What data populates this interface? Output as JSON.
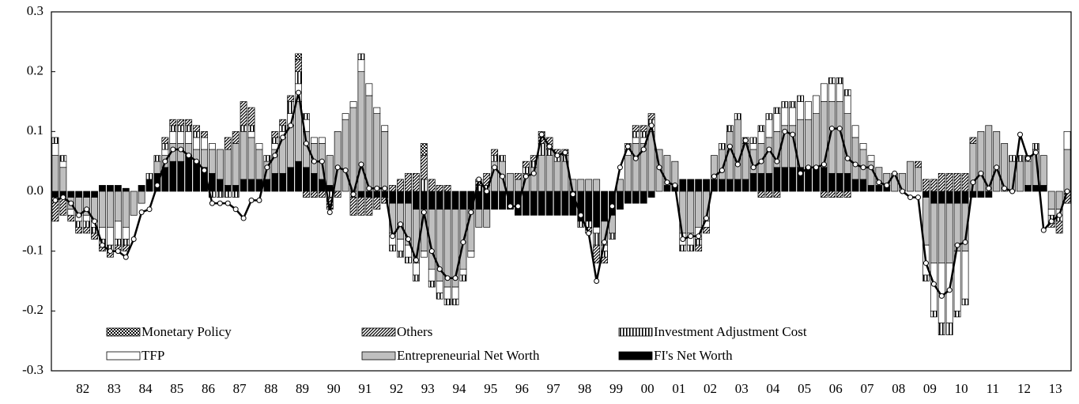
{
  "chart_data": {
    "type": "bar",
    "stacked": true,
    "categories": [
      null,
      null,
      null,
      "82",
      null,
      null,
      null,
      "83",
      null,
      null,
      null,
      "84",
      null,
      null,
      null,
      "85",
      null,
      null,
      null,
      "86",
      null,
      null,
      null,
      "87",
      null,
      null,
      null,
      "88",
      null,
      null,
      null,
      "89",
      null,
      null,
      null,
      "90",
      null,
      null,
      null,
      "91",
      null,
      null,
      null,
      "92",
      null,
      null,
      null,
      "93",
      null,
      null,
      null,
      "94",
      null,
      null,
      null,
      "95",
      null,
      null,
      null,
      "96",
      null,
      null,
      null,
      "97",
      null,
      null,
      null,
      "98",
      null,
      null,
      null,
      "99",
      null,
      null,
      null,
      "00",
      null,
      null,
      null,
      "01",
      null,
      null,
      null,
      "02",
      null,
      null,
      null,
      "03",
      null,
      null,
      null,
      "04",
      null,
      null,
      null,
      "05",
      null,
      null,
      null,
      "06",
      null,
      null,
      null,
      "07",
      null,
      null,
      null,
      "08",
      null,
      null,
      null,
      "09",
      null,
      null,
      null,
      "10",
      null,
      null,
      null,
      "11",
      null,
      null,
      null,
      "12",
      null,
      null,
      null,
      "13",
      null,
      null
    ],
    "series": [
      {
        "name": "Monetary Policy",
        "color": "#000000",
        "pattern": "checker",
        "values": [
          0,
          0,
          0,
          0,
          0,
          0,
          0,
          0,
          0,
          0,
          0,
          0,
          0,
          0,
          0,
          0,
          0,
          0,
          0,
          0,
          0,
          0,
          0,
          0,
          0,
          0,
          0,
          0,
          0,
          0,
          0,
          0.01,
          0,
          0,
          0,
          0,
          0,
          0,
          0,
          0,
          0,
          0,
          0,
          0,
          0,
          0,
          0,
          0.02,
          0,
          0,
          0,
          0,
          0,
          0,
          0,
          0,
          0,
          0,
          0,
          0,
          0,
          0,
          0,
          0,
          0,
          0,
          0,
          0,
          0,
          0,
          0,
          0,
          0,
          0,
          0,
          0,
          0,
          0,
          0,
          0,
          0,
          0,
          0,
          0,
          0,
          0,
          0,
          0,
          0,
          0,
          0,
          0,
          0,
          0,
          0,
          0,
          0,
          0,
          0,
          0,
          0,
          0,
          0,
          0,
          0,
          0,
          0,
          0,
          0,
          0,
          0,
          0,
          0,
          0,
          0,
          0,
          0,
          0,
          0,
          0,
          0,
          0,
          0,
          0,
          0,
          0,
          0,
          0,
          0,
          0
        ]
      },
      {
        "name": "Others",
        "color": "#000000",
        "pattern": "hatch",
        "values": [
          -0.04,
          -0.03,
          -0.01,
          -0.01,
          -0.01,
          -0.01,
          -0.01,
          -0.01,
          -0.01,
          -0.01,
          0,
          0,
          0,
          0,
          0.01,
          0.01,
          0.01,
          0.01,
          0.01,
          0.01,
          0,
          0,
          0.02,
          0.02,
          0.04,
          0.03,
          0,
          0,
          0.01,
          0.01,
          0.01,
          0.02,
          -0.01,
          -0.01,
          -0.01,
          -0.02,
          -0.01,
          0,
          -0.03,
          -0.03,
          -0.03,
          -0.02,
          -0.01,
          0.01,
          0.02,
          0.03,
          0.03,
          0.04,
          0.02,
          0.01,
          0.01,
          0,
          0,
          0,
          0.01,
          0.02,
          0.01,
          0,
          0,
          0.01,
          0.01,
          0.01,
          0.02,
          0.02,
          0.01,
          0.01,
          0,
          0,
          -0.01,
          -0.03,
          -0.01,
          0,
          0,
          0,
          0.01,
          0.01,
          0.01,
          0,
          0,
          0,
          0,
          0,
          -0.01,
          -0.01,
          0,
          0,
          0,
          0,
          0,
          0,
          -0.01,
          -0.01,
          -0.01,
          0,
          0,
          0,
          0,
          0,
          -0.01,
          -0.01,
          -0.01,
          -0.01,
          0,
          0,
          0,
          0,
          0,
          0,
          0,
          0,
          0.01,
          0.02,
          0.02,
          0.03,
          0.03,
          0.03,
          0.03,
          0.01,
          0,
          0,
          0,
          0,
          0,
          0,
          0,
          0,
          0,
          -0.01,
          -0.02,
          -0.02
        ]
      },
      {
        "name": "Investment Adjustment Cost",
        "color": "#000000",
        "pattern": "stripes",
        "values": [
          0.01,
          0.01,
          0,
          -0.01,
          -0.01,
          -0.01,
          -0.01,
          -0.01,
          -0.01,
          -0.01,
          0,
          0,
          0.01,
          0.01,
          0.01,
          0.01,
          0.01,
          0.01,
          0.01,
          0,
          -0.01,
          -0.01,
          -0.01,
          -0.01,
          0.01,
          0.01,
          0,
          0.01,
          0.01,
          0.01,
          0.02,
          0.02,
          0.01,
          0,
          0,
          -0.01,
          0,
          0,
          -0.01,
          0.01,
          0,
          0,
          0,
          -0.01,
          -0.01,
          -0.01,
          -0.01,
          0.02,
          -0.01,
          -0.01,
          -0.01,
          -0.01,
          -0.01,
          0,
          0.01,
          0.01,
          0.01,
          0.01,
          0,
          0,
          0.01,
          0.01,
          0.02,
          0.01,
          0.01,
          0.01,
          0,
          -0.01,
          -0.01,
          -0.02,
          -0.01,
          -0.01,
          0,
          0.01,
          0.01,
          0.01,
          0.01,
          0,
          0,
          0,
          -0.01,
          -0.01,
          -0.01,
          0,
          0,
          0.01,
          0.01,
          0.01,
          0.01,
          0.01,
          0.01,
          0.01,
          0.01,
          0.01,
          0.01,
          0.01,
          0,
          0,
          0,
          0.01,
          0.01,
          0.01,
          0,
          0,
          0,
          0,
          0,
          0,
          0,
          0,
          0,
          -0.01,
          -0.01,
          -0.02,
          -0.02,
          -0.01,
          -0.01,
          0,
          0,
          0,
          0,
          0,
          0.01,
          0.01,
          0.01,
          0.01,
          0,
          -0.01,
          -0.01,
          0
        ]
      },
      {
        "name": "TFP",
        "color": "#ffffff",
        "pattern": "solid",
        "values": [
          0.02,
          0.01,
          -0.01,
          -0.01,
          -0.01,
          -0.01,
          -0.02,
          -0.03,
          -0.03,
          -0.02,
          0,
          0,
          0,
          0,
          0.01,
          0.02,
          0.02,
          0.02,
          0.02,
          0.02,
          0.01,
          0,
          0,
          0,
          0,
          0.01,
          0.01,
          0,
          0.01,
          0.01,
          0.02,
          0.03,
          0.02,
          0.01,
          0.01,
          0,
          0,
          0.01,
          0.01,
          0.02,
          0.02,
          0.01,
          0.01,
          -0.02,
          -0.02,
          -0.02,
          -0.02,
          -0.01,
          -0.02,
          -0.02,
          -0.02,
          -0.02,
          -0.01,
          -0.01,
          0,
          0,
          0,
          0,
          0,
          0,
          0,
          0,
          0,
          0,
          0,
          0,
          0,
          0,
          0,
          -0.01,
          -0.01,
          0,
          0,
          0.01,
          0.01,
          0.01,
          0.01,
          0,
          0,
          0,
          -0.02,
          -0.02,
          -0.02,
          -0.01,
          0,
          0,
          0,
          0,
          0,
          0.01,
          0.02,
          0.03,
          0.03,
          0.03,
          0.03,
          0.03,
          0.03,
          0.03,
          0.03,
          0.03,
          0.03,
          0.03,
          0.02,
          0.01,
          0.01,
          0,
          0,
          0,
          0,
          0,
          0,
          -0.05,
          -0.08,
          -0.1,
          -0.1,
          -0.1,
          -0.08,
          0,
          0,
          0,
          0,
          0,
          0,
          0,
          0,
          0,
          0,
          -0.01,
          -0.01,
          0.03
        ]
      },
      {
        "name": "Entrepreneurial Net Worth",
        "color": "#bfbfbf",
        "pattern": "solid",
        "values": [
          0.06,
          0.04,
          -0.02,
          -0.03,
          -0.03,
          -0.04,
          -0.06,
          -0.06,
          -0.05,
          -0.06,
          -0.04,
          -0.02,
          0,
          0.02,
          0.02,
          0.03,
          0.03,
          0.02,
          0.02,
          0.03,
          0.04,
          0.05,
          0.06,
          0.07,
          0.08,
          0.07,
          0.05,
          0.03,
          0.04,
          0.06,
          0.07,
          0.1,
          0.06,
          0.05,
          0.06,
          0.05,
          0.1,
          0.12,
          0.14,
          0.2,
          0.16,
          0.13,
          0.1,
          -0.05,
          -0.06,
          -0.07,
          -0.09,
          -0.07,
          -0.1,
          -0.12,
          -0.13,
          -0.13,
          -0.1,
          -0.07,
          -0.03,
          -0.03,
          0.05,
          0.05,
          0.03,
          0.02,
          0.03,
          0.04,
          0.06,
          0.06,
          0.05,
          0.05,
          0.02,
          0.02,
          0.02,
          0.02,
          -0.04,
          -0.03,
          0.02,
          0.06,
          0.08,
          0.08,
          0.1,
          0.07,
          0.05,
          0.04,
          -0.07,
          -0.07,
          -0.06,
          -0.05,
          0.04,
          0.05,
          0.08,
          0.1,
          0.06,
          0.04,
          0.05,
          0.06,
          0.06,
          0.07,
          0.07,
          0.08,
          0.08,
          0.09,
          0.11,
          0.12,
          0.12,
          0.1,
          0.07,
          0.05,
          0.04,
          0.03,
          0.02,
          0.03,
          0.03,
          0.05,
          0.04,
          -0.08,
          -0.1,
          -0.1,
          -0.1,
          -0.08,
          -0.08,
          0.08,
          0.1,
          0.11,
          0.1,
          0.08,
          0.05,
          0.05,
          0.04,
          0.06,
          0.05,
          -0.03,
          -0.03,
          0.07
        ]
      },
      {
        "name": "FI's Net Worth",
        "color": "#000000",
        "pattern": "solid",
        "values": [
          -0.01,
          -0.01,
          -0.01,
          -0.01,
          -0.01,
          -0.01,
          0.01,
          0.01,
          0.01,
          0.005,
          0,
          0.01,
          0.02,
          0.03,
          0.04,
          0.05,
          0.05,
          0.06,
          0.05,
          0.04,
          0.03,
          0.02,
          0.01,
          0.01,
          0.02,
          0.02,
          0.02,
          0.02,
          0.03,
          0.03,
          0.04,
          0.05,
          0.04,
          0.03,
          0.02,
          0.01,
          0,
          0,
          0,
          -0.01,
          -0.01,
          -0.01,
          -0.01,
          -0.02,
          -0.02,
          -0.02,
          -0.03,
          -0.03,
          -0.03,
          -0.03,
          -0.03,
          -0.03,
          -0.03,
          -0.03,
          -0.03,
          -0.03,
          -0.03,
          -0.03,
          -0.03,
          -0.04,
          -0.04,
          -0.04,
          -0.04,
          -0.04,
          -0.04,
          -0.04,
          -0.04,
          -0.05,
          -0.05,
          -0.06,
          -0.05,
          -0.04,
          -0.03,
          -0.02,
          -0.02,
          -0.02,
          -0.01,
          0,
          0.01,
          0.01,
          0.02,
          0.02,
          0.02,
          0.02,
          0.02,
          0.02,
          0.02,
          0.02,
          0.02,
          0.03,
          0.03,
          0.03,
          0.04,
          0.04,
          0.04,
          0.04,
          0.04,
          0.04,
          0.04,
          0.03,
          0.03,
          0.03,
          0.02,
          0.02,
          0.01,
          0.01,
          0.01,
          0,
          0,
          0,
          0,
          -0.01,
          -0.02,
          -0.02,
          -0.02,
          -0.02,
          -0.02,
          -0.01,
          -0.01,
          -0.01,
          0,
          0,
          0,
          0,
          0.01,
          0.01,
          0.01,
          0,
          0,
          0
        ]
      }
    ],
    "line": {
      "type": "line",
      "color": "#000000",
      "values": [
        -0.015,
        -0.01,
        -0.02,
        -0.04,
        -0.03,
        -0.05,
        -0.09,
        -0.1,
        -0.1,
        -0.11,
        -0.08,
        -0.035,
        -0.03,
        0.01,
        0.05,
        0.07,
        0.07,
        0.06,
        0.05,
        0.035,
        -0.02,
        -0.02,
        -0.02,
        -0.03,
        -0.045,
        -0.015,
        -0.015,
        0.04,
        0.06,
        0.09,
        0.11,
        0.165,
        0.08,
        0.05,
        0.05,
        -0.035,
        0.04,
        0.035,
        -0.005,
        0.045,
        0.005,
        0.005,
        0.005,
        -0.075,
        -0.055,
        -0.08,
        -0.115,
        -0.035,
        -0.1,
        -0.13,
        -0.145,
        -0.145,
        -0.085,
        -0.035,
        0.02,
        0,
        0.04,
        0.025,
        -0.025,
        -0.025,
        0.025,
        0.03,
        0.095,
        0.075,
        0.06,
        0.065,
        -0.005,
        -0.04,
        -0.07,
        -0.15,
        -0.085,
        -0.025,
        0.04,
        0.075,
        0.055,
        0.07,
        0.11,
        0.04,
        0.015,
        0.01,
        -0.08,
        -0.075,
        -0.075,
        -0.045,
        0.025,
        0.035,
        0.075,
        0.045,
        0.085,
        0.04,
        0.05,
        0.07,
        0.05,
        0.1,
        0.095,
        0.03,
        0.04,
        0.04,
        0.045,
        0.105,
        0.105,
        0.055,
        0.045,
        0.04,
        0.04,
        0.015,
        0.01,
        0.03,
        0,
        -0.01,
        -0.01,
        -0.12,
        -0.155,
        -0.175,
        -0.165,
        -0.09,
        -0.085,
        0.015,
        0.03,
        0.005,
        0.04,
        0.005,
        0,
        0.095,
        0.055,
        0.065,
        -0.065,
        -0.05,
        -0.04,
        0
      ]
    },
    "ylim": [
      -0.3,
      0.3
    ],
    "yticks": [
      -0.3,
      -0.2,
      -0.1,
      {
        "value": 0,
        "label": "0.0"
      },
      0.1,
      0.2,
      0.3
    ],
    "grid": false,
    "legend": "bottom"
  }
}
